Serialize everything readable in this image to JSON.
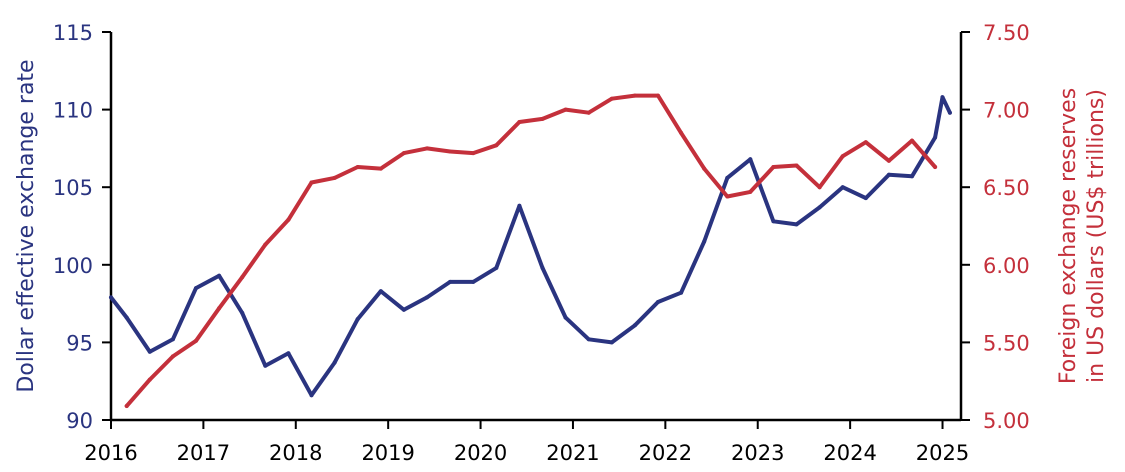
{
  "chart_data": {
    "type": "line",
    "title": "",
    "colors": {
      "left": "#2a3480",
      "right": "#c4303b",
      "axis": "#000000"
    },
    "x_axis": {
      "label": "",
      "range": [
        2016,
        2025.2
      ],
      "ticks": [
        2016,
        2017,
        2018,
        2019,
        2020,
        2021,
        2022,
        2023,
        2024,
        2025
      ],
      "tick_labels": [
        "2016",
        "2017",
        "2018",
        "2019",
        "2020",
        "2021",
        "2022",
        "2023",
        "2024",
        "2025"
      ]
    },
    "y_left": {
      "label": "Dollar effective exchange rate",
      "range": [
        90,
        115
      ],
      "ticks": [
        90,
        95,
        100,
        105,
        110,
        115
      ],
      "tick_labels": [
        "90",
        "95",
        "100",
        "105",
        "110",
        "115"
      ]
    },
    "y_right": {
      "label_lines": [
        "Foreign exchange reserves",
        "in US dollars (US$ trillions)"
      ],
      "range": [
        5.0,
        7.5
      ],
      "ticks": [
        5.0,
        5.5,
        6.0,
        6.5,
        7.0,
        7.5
      ],
      "tick_labels": [
        "5.00",
        "5.50",
        "6.00",
        "6.50",
        "7.00",
        "7.50"
      ]
    },
    "series": [
      {
        "axis": "left",
        "color": "#2a3480",
        "x": [
          2016.0,
          2016.17,
          2016.42,
          2016.67,
          2016.92,
          2017.17,
          2017.42,
          2017.67,
          2017.92,
          2018.17,
          2018.42,
          2018.67,
          2018.92,
          2019.17,
          2019.42,
          2019.67,
          2019.92,
          2020.17,
          2020.42,
          2020.67,
          2020.92,
          2021.17,
          2021.42,
          2021.67,
          2021.92,
          2022.17,
          2022.42,
          2022.67,
          2022.92,
          2023.17,
          2023.42,
          2023.67,
          2023.92,
          2024.17,
          2024.42,
          2024.67,
          2024.92,
          2025.0,
          2025.08
        ],
        "values": [
          97.9,
          96.6,
          94.4,
          95.2,
          98.5,
          99.3,
          96.9,
          93.5,
          94.3,
          91.6,
          93.7,
          96.5,
          98.3,
          97.1,
          97.9,
          98.9,
          98.9,
          99.8,
          103.8,
          99.8,
          96.6,
          95.2,
          95.0,
          96.1,
          97.6,
          98.2,
          101.5,
          105.6,
          106.8,
          102.8,
          102.6,
          103.7,
          105.0,
          104.3,
          105.8,
          105.7,
          108.2,
          110.8,
          109.8
        ]
      },
      {
        "axis": "right",
        "color": "#c4303b",
        "x": [
          2016.17,
          2016.42,
          2016.67,
          2016.92,
          2017.17,
          2017.42,
          2017.67,
          2017.92,
          2018.17,
          2018.42,
          2018.67,
          2018.92,
          2019.17,
          2019.42,
          2019.67,
          2019.92,
          2020.17,
          2020.42,
          2020.67,
          2020.92,
          2021.17,
          2021.42,
          2021.67,
          2021.92,
          2022.17,
          2022.42,
          2022.67,
          2022.92,
          2023.17,
          2023.42,
          2023.67,
          2023.92,
          2024.17,
          2024.42,
          2024.67,
          2024.92
        ],
        "values": [
          5.09,
          5.26,
          5.41,
          5.51,
          5.72,
          5.92,
          6.13,
          6.29,
          6.53,
          6.56,
          6.63,
          6.62,
          6.72,
          6.75,
          6.73,
          6.72,
          6.77,
          6.92,
          6.94,
          7.0,
          6.98,
          7.07,
          7.09,
          7.09,
          6.85,
          6.62,
          6.44,
          6.47,
          6.63,
          6.64,
          6.5,
          6.7,
          6.79,
          6.67,
          6.8,
          6.63
        ]
      }
    ]
  }
}
